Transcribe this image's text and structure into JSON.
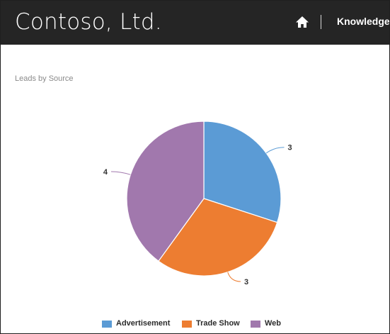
{
  "header": {
    "brand": "Contoso, Ltd.",
    "home_icon": "home-icon",
    "nav_link": "Knowledge"
  },
  "chart_title": "Leads by Source",
  "chart_data": {
    "type": "pie",
    "title": "Leads by Source",
    "categories": [
      "Advertisement",
      "Trade Show",
      "Web"
    ],
    "values": [
      3,
      3,
      4
    ],
    "colors": [
      "#5b9bd5",
      "#ed7d31",
      "#a178ad"
    ],
    "legend_position": "bottom"
  }
}
